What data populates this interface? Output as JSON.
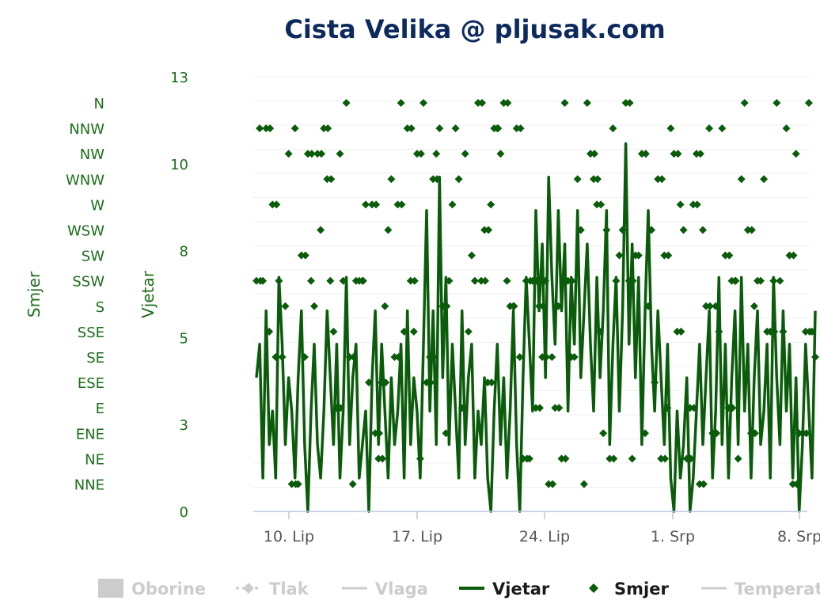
{
  "chart_data": {
    "type": "line",
    "title": "Cista Velika @ pljusak.com",
    "x_ticks": [
      "10. Lip",
      "17. Lip",
      "24. Lip",
      "1. Srp",
      "8. Srp"
    ],
    "y_left_title": "Smjer",
    "y_left_categories": [
      "N",
      "NNW",
      "NW",
      "WNW",
      "W",
      "WSW",
      "SW",
      "SSW",
      "S",
      "SSE",
      "SE",
      "ESE",
      "E",
      "ENE",
      "NE",
      "NNE"
    ],
    "y_right_title": "Vjetar",
    "y_right_ticks": [
      "13",
      "10",
      "8",
      "5",
      "3",
      "0"
    ],
    "ylim": [
      0,
      13
    ],
    "xlim": [
      "2023-06-08",
      "2023-07-08"
    ],
    "grid": true,
    "legend_position": "bottom",
    "colors": {
      "accent": "#0a5c0a",
      "title": "#0d2a5e",
      "axis_text": "#1b6e1b",
      "inactive": "#cccccc"
    },
    "series": [
      {
        "name": "Oborine",
        "active": false,
        "symbol": "rect"
      },
      {
        "name": "Tlak",
        "active": false,
        "symbol": "dash-diamond"
      },
      {
        "name": "Vlaga",
        "active": false,
        "symbol": "line"
      },
      {
        "name": "Vjetar",
        "active": true,
        "symbol": "line",
        "values": [
          4,
          5,
          1,
          6,
          2,
          3,
          1,
          7,
          5,
          2,
          4,
          3,
          1,
          4,
          6,
          2,
          0,
          3,
          5,
          2,
          1,
          3,
          6,
          4,
          2,
          5,
          1,
          3,
          7,
          2,
          4,
          5,
          1,
          2,
          3,
          0,
          4,
          6,
          2,
          5,
          3,
          1,
          4,
          2,
          3,
          5,
          1,
          6,
          2,
          4,
          3,
          1,
          5,
          9,
          3,
          6,
          2,
          10,
          4,
          7,
          2,
          5,
          3,
          1,
          6,
          2,
          4,
          5,
          1,
          3,
          2,
          4,
          1,
          0,
          3,
          5,
          2,
          4,
          1,
          3,
          6,
          2,
          0,
          4,
          7,
          5,
          3,
          9,
          6,
          8,
          4,
          10,
          7,
          5,
          9,
          6,
          8,
          3,
          7,
          5,
          9,
          4,
          6,
          8,
          5,
          3,
          7,
          4,
          6,
          9,
          2,
          5,
          7,
          3,
          6,
          11,
          5,
          8,
          4,
          7,
          2,
          6,
          9,
          5,
          3,
          6,
          4,
          2,
          5,
          1,
          0,
          3,
          1,
          2,
          4,
          0,
          1,
          3,
          5,
          2,
          4,
          6,
          1,
          3,
          7,
          2,
          5,
          1,
          4,
          6,
          2,
          7,
          3,
          5,
          1,
          4,
          6,
          2,
          3,
          5,
          1,
          7,
          4,
          2,
          6,
          3,
          5,
          1,
          4,
          0,
          2,
          5,
          3,
          1,
          6
        ]
      },
      {
        "name": "Smjer",
        "active": true,
        "symbol": "diamond"
      },
      {
        "name": "Temperat",
        "active": false,
        "symbol": "line"
      }
    ]
  }
}
